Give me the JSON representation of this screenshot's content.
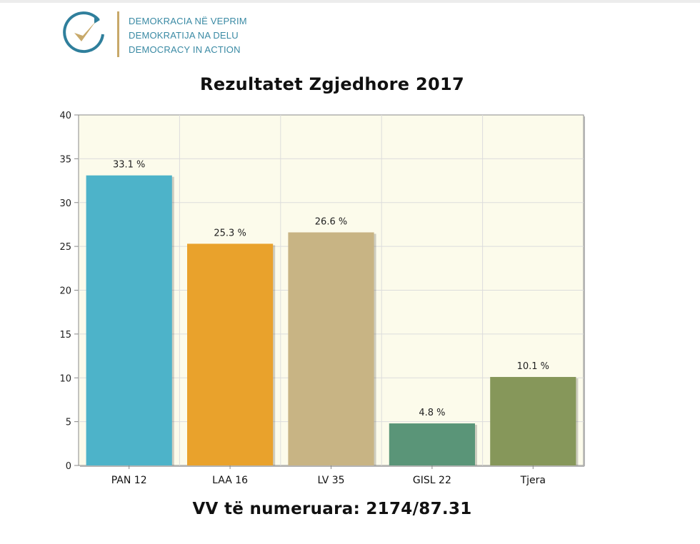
{
  "logo": {
    "line1": "DEMOKRACIA NË VEPRIM",
    "line2": "DEMOKRATIJA NA DELU",
    "line3": "DEMOCRACY IN ACTION"
  },
  "footer": {
    "counted": "VV të numeruara: 2174/87.31"
  },
  "colors": {
    "plot_bg": "#fcfbeb",
    "grid": "#dcdcdc",
    "axis": "#888888"
  },
  "chart_data": {
    "type": "bar",
    "title": "Rezultatet Zgjedhore 2017",
    "xlabel": "",
    "ylabel": "",
    "categories": [
      "PAN 12",
      "LAA 16",
      "LV 35",
      "GISL 22",
      "Tjera"
    ],
    "values": [
      33.1,
      25.3,
      26.6,
      4.8,
      10.1
    ],
    "value_labels": [
      "33.1 %",
      "25.3 %",
      "26.6 %",
      "4.8 %",
      "10.1 %"
    ],
    "colors": [
      "#4db3c9",
      "#e9a22c",
      "#c8b484",
      "#5a9578",
      "#86975a"
    ],
    "ylim": [
      0,
      40
    ],
    "yticks": [
      0,
      5,
      10,
      15,
      20,
      25,
      30,
      35,
      40
    ],
    "grid": true,
    "legend": "none"
  }
}
